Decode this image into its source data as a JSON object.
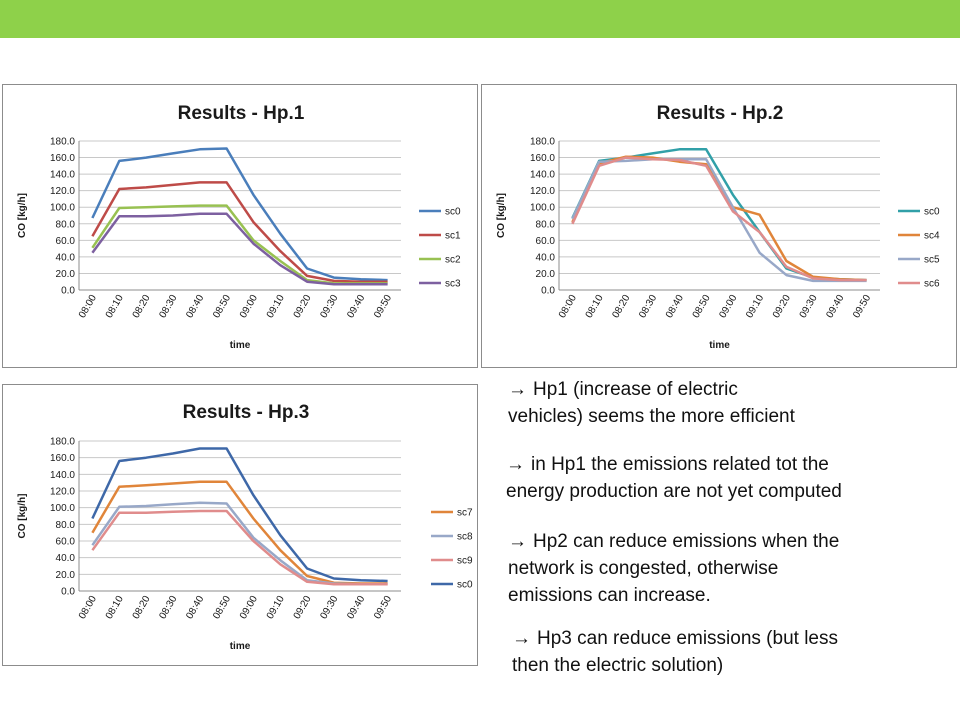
{
  "header": {
    "bar_color": "#8ed14a"
  },
  "chart_data": [
    {
      "type": "line",
      "title": "Results - Hp.1",
      "xlabel": "time",
      "ylabel": "CO [kg/h]",
      "ylim": [
        0,
        180
      ],
      "yticks": [
        "0.0",
        "20.0",
        "40.0",
        "60.0",
        "80.0",
        "100.0",
        "120.0",
        "140.0",
        "160.0",
        "180.0"
      ],
      "grid": true,
      "legend": "right",
      "categories": [
        "08:00",
        "08:10",
        "08:20",
        "08:30",
        "08:40",
        "08:50",
        "09:00",
        "09:10",
        "09:20",
        "09:30",
        "09:40",
        "09:50"
      ],
      "series": [
        {
          "name": "sc0",
          "color": "#4a7ebb",
          "values": [
            87,
            156,
            160,
            165,
            170,
            171,
            115,
            68,
            26,
            15,
            13,
            12
          ]
        },
        {
          "name": "sc1",
          "color": "#be4b48",
          "values": [
            65,
            122,
            124,
            127,
            130,
            130,
            82,
            47,
            17,
            11,
            10,
            10
          ]
        },
        {
          "name": "sc2",
          "color": "#98c152",
          "values": [
            51,
            99,
            100,
            101,
            102,
            102,
            60,
            35,
            12,
            8,
            8,
            8
          ]
        },
        {
          "name": "sc3",
          "color": "#7d60a0",
          "values": [
            45,
            89,
            89,
            90,
            92,
            92,
            56,
            30,
            10,
            7,
            7,
            7
          ]
        }
      ]
    },
    {
      "type": "line",
      "title": "Results - Hp.2",
      "xlabel": "time",
      "ylabel": "CO [kg/h]",
      "ylim": [
        0,
        180
      ],
      "yticks": [
        "0.0",
        "20.0",
        "40.0",
        "60.0",
        "80.0",
        "100.0",
        "120.0",
        "140.0",
        "160.0",
        "180.0"
      ],
      "grid": true,
      "legend": "right",
      "categories": [
        "08:00",
        "08:10",
        "08:20",
        "08:30",
        "08:40",
        "08:50",
        "09:00",
        "09:10",
        "09:20",
        "09:30",
        "09:40",
        "09:50"
      ],
      "series": [
        {
          "name": "sc0",
          "color": "#31a0a8",
          "values": [
            87,
            156,
            160,
            165,
            170,
            170,
            115,
            70,
            26,
            15,
            13,
            12
          ]
        },
        {
          "name": "sc4",
          "color": "#e0853a",
          "values": [
            82,
            153,
            161,
            160,
            155,
            152,
            100,
            91,
            35,
            16,
            13,
            12
          ]
        },
        {
          "name": "sc5",
          "color": "#98a8c8",
          "values": [
            86,
            155,
            156,
            158,
            158,
            158,
            100,
            45,
            18,
            11,
            11,
            11
          ]
        },
        {
          "name": "sc6",
          "color": "#e08c8c",
          "values": [
            80,
            150,
            160,
            158,
            157,
            150,
            95,
            70,
            28,
            14,
            12,
            12
          ]
        }
      ]
    },
    {
      "type": "line",
      "title": "Results - Hp.3",
      "xlabel": "time",
      "ylabel": "CO [kg/h]",
      "ylim": [
        0,
        180
      ],
      "yticks": [
        "0.0",
        "20.0",
        "40.0",
        "60.0",
        "80.0",
        "100.0",
        "120.0",
        "140.0",
        "160.0",
        "180.0"
      ],
      "grid": true,
      "legend": "right",
      "categories": [
        "08:00",
        "08:10",
        "08:20",
        "08:30",
        "08:40",
        "08:50",
        "09:00",
        "09:10",
        "09:20",
        "09:30",
        "09:40",
        "09:50"
      ],
      "series": [
        {
          "name": "sc7",
          "color": "#e0853a",
          "values": [
            70,
            125,
            127,
            129,
            131,
            131,
            87,
            49,
            18,
            10,
            9,
            9
          ]
        },
        {
          "name": "sc8",
          "color": "#98a8c8",
          "values": [
            55,
            101,
            102,
            104,
            106,
            105,
            64,
            37,
            13,
            9,
            8,
            8
          ]
        },
        {
          "name": "sc9",
          "color": "#e08c8c",
          "values": [
            49,
            94,
            94,
            95,
            96,
            96,
            60,
            32,
            11,
            8,
            8,
            8
          ]
        },
        {
          "name": "sc0",
          "color": "#3e68a8",
          "values": [
            87,
            156,
            160,
            165,
            171,
            171,
            115,
            67,
            27,
            15,
            13,
            12
          ]
        }
      ]
    }
  ],
  "bullets": [
    {
      "arrow": "→",
      "lines": [
        "Hp1 (increase of electric",
        "vehicles) seems the more efficient"
      ]
    },
    {
      "arrow": "→",
      "lines": [
        "in Hp1 the emissions related tot the",
        "energy production are not yet computed"
      ]
    },
    {
      "arrow": "→",
      "lines": [
        "Hp2 can reduce emissions when the",
        "network is congested, otherwise",
        "emissions can increase."
      ]
    },
    {
      "arrow": "→",
      "lines": [
        "Hp3 can reduce emissions (but less",
        "then the electric solution)"
      ]
    }
  ]
}
